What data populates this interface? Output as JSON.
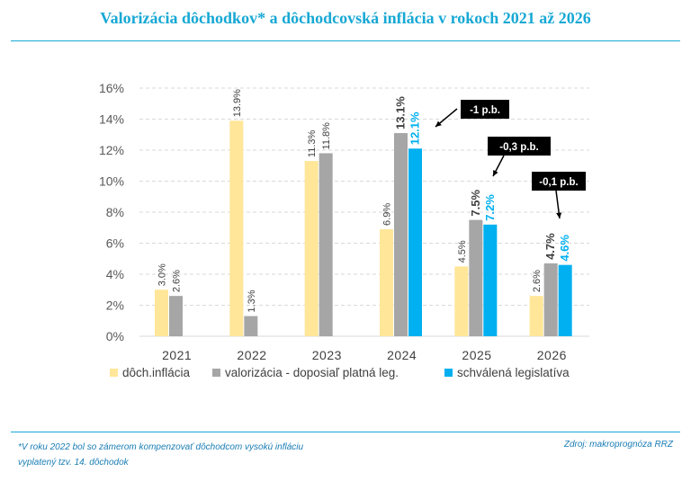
{
  "header": {
    "title": "Valorizácia dôchodkov* a dôchodcovská inflácia v rokoch 2021 až 2026"
  },
  "footer": {
    "footnote_line1": "*V roku 2022 bol so zámerom kompenzovať dôchodcom vysokú infláciu",
    "footnote_line2": "vyplatený tzv. 14. dôchodok",
    "source": "Zdroj: makroprognóza RRZ"
  },
  "colors": {
    "inflation": "#ffe699",
    "valorization": "#a6a6a6",
    "legislation": "#00b0f0",
    "title": "#17a8d5",
    "annotation_bg": "#000000"
  },
  "chart_data": {
    "type": "bar",
    "title": "Valorizácia dôchodkov* a dôchodcovská inflácia v rokoch 2021 až 2026",
    "categories": [
      "2021",
      "2022",
      "2023",
      "2024",
      "2025",
      "2026"
    ],
    "ylim": [
      0,
      16
    ],
    "yticks": [
      0,
      2,
      4,
      6,
      8,
      10,
      12,
      14,
      16
    ],
    "ytick_labels": [
      "0%",
      "2%",
      "4%",
      "6%",
      "8%",
      "10%",
      "12%",
      "14%",
      "16%"
    ],
    "grid": true,
    "legend_position": "bottom",
    "series": [
      {
        "name": "dôch.inflácia",
        "color": "#ffe699",
        "label_color": "#404040",
        "bold_labels": false,
        "values": [
          3.0,
          13.9,
          11.3,
          6.9,
          4.5,
          2.6
        ],
        "labels": [
          "3.0%",
          "13.9%",
          "11.3%",
          "6.9%",
          "4.5%",
          "2.6%"
        ]
      },
      {
        "name": "valorizácia - doposiaľ platná leg.",
        "color": "#a6a6a6",
        "label_color": "#404040",
        "bold_labels_from": 3,
        "values": [
          2.6,
          1.3,
          11.8,
          13.1,
          7.5,
          4.7
        ],
        "labels": [
          "2.6%",
          "1.3%",
          "11.8%",
          "13.1%",
          "7.5%",
          "4.7%"
        ]
      },
      {
        "name": "schválená legislatíva",
        "color": "#00b0f0",
        "label_color": "#00b0f0",
        "bold_labels_from": 3,
        "values": [
          null,
          null,
          null,
          12.1,
          7.2,
          4.6
        ],
        "labels": [
          "",
          "",
          "",
          "12.1%",
          "7.2%",
          "4.6%"
        ]
      }
    ],
    "annotations": [
      {
        "text": "-1 p.b.",
        "category": "2024"
      },
      {
        "text": "-0,3 p.b.",
        "category": "2025"
      },
      {
        "text": "-0,1 p.b.",
        "category": "2026"
      }
    ]
  }
}
